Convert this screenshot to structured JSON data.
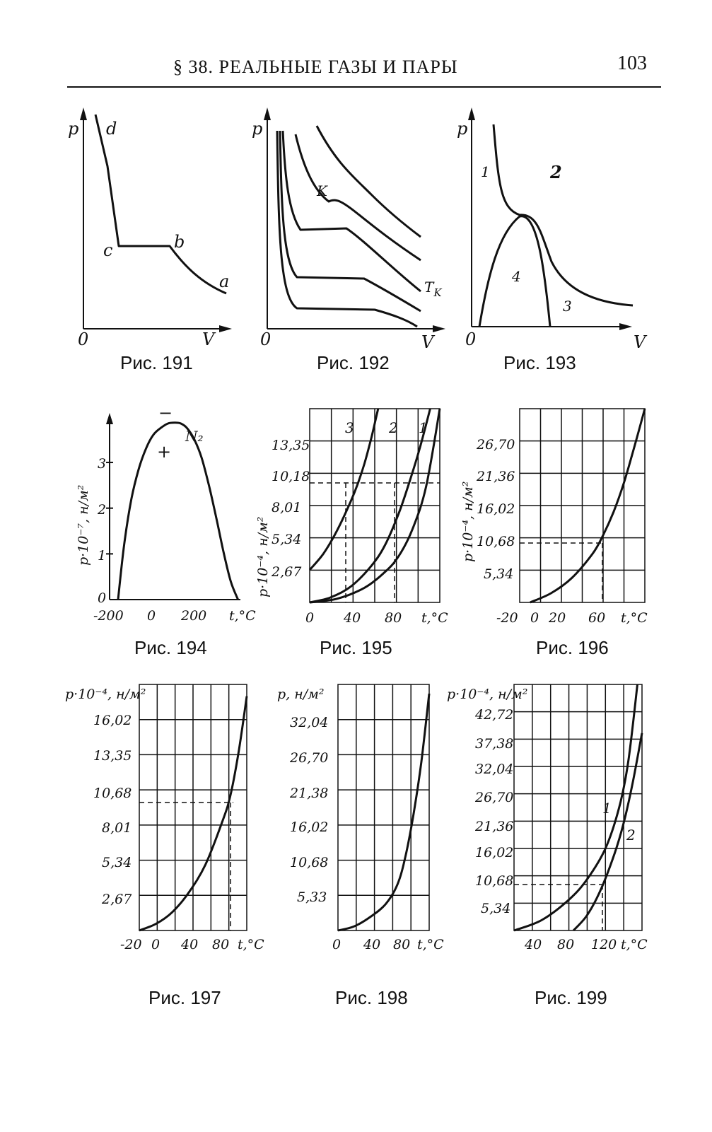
{
  "header": {
    "title": "§ 38. РЕАЛЬНЫЕ ГАЗЫ И ПАРЫ",
    "page_number": "103"
  },
  "figures": {
    "f191": {
      "caption": "Рис. 191",
      "ylabel": "p",
      "xlabel": "V",
      "origin": "0",
      "point_labels": {
        "a": "a",
        "b": "b",
        "c": "c",
        "d": "d"
      }
    },
    "f192": {
      "caption": "Рис. 192",
      "ylabel": "p",
      "xlabel": "V",
      "origin": "0",
      "point_K": "K",
      "label_Tk": "T",
      "label_Tk_sub": "K"
    },
    "f193": {
      "caption": "Рис. 193",
      "ylabel": "p",
      "xlabel": "V",
      "origin": "0",
      "region_labels": {
        "r1": "1",
        "r2": "2",
        "r3": "3",
        "r4": "4"
      }
    },
    "f194": {
      "caption": "Рис. 194",
      "ylabel": "p·10⁻⁷, н/м²",
      "xlabel": "t,°C",
      "series_label": "N₂",
      "minus_sign": "−",
      "plus_sign": "+"
    },
    "f195": {
      "caption": "Рис. 195",
      "ylabel": "p·10⁻⁴, н/м²",
      "xlabel": "t,°C",
      "curve_labels": [
        "3",
        "2",
        "1"
      ]
    },
    "f196": {
      "caption": "Рис. 196",
      "ylabel": "p·10⁻⁴, н/м²",
      "xlabel": "t,°C"
    },
    "f197": {
      "caption": "Рис. 197",
      "ylabel": "p·10⁻⁴, н/м²",
      "xlabel": "t,°C"
    },
    "f198": {
      "caption": "Рис. 198",
      "ylabel": "p, н/м²",
      "xlabel": "t,°C"
    },
    "f199": {
      "caption": "Рис. 199",
      "ylabel": "p·10⁻⁴, н/м²",
      "xlabel": "t,°C",
      "curve_labels": [
        "1",
        "2"
      ]
    }
  },
  "chart_data": [
    {
      "id": "f194",
      "type": "line",
      "xlabel": "t,°C",
      "ylabel": "p·10⁻⁷, н/м²",
      "xticks": [
        "-200",
        "0",
        "200"
      ],
      "yticks": [
        "0",
        "1",
        "2",
        "3"
      ],
      "xlim": [
        -240,
        300
      ],
      "ylim": [
        0,
        4.3
      ],
      "series": [
        {
          "name": "N₂",
          "x": [
            -205,
            -180,
            -150,
            -120,
            -90,
            -60,
            -30,
            0,
            30,
            55,
            80,
            110,
            140,
            170,
            200,
            230,
            260,
            290
          ],
          "y": [
            0,
            1.2,
            2.2,
            2.85,
            3.3,
            3.6,
            3.75,
            3.85,
            3.87,
            3.85,
            3.75,
            3.5,
            3.1,
            2.5,
            1.8,
            1.05,
            0.4,
            0
          ]
        }
      ]
    },
    {
      "id": "f195",
      "type": "line",
      "xlabel": "t,°C",
      "ylabel": "p·10⁻⁴, н/м²",
      "xticks": [
        "0",
        "40",
        "80"
      ],
      "yticks": [
        "2,67",
        "5,34",
        "8,01",
        "10,18",
        "13,35"
      ],
      "xlim": [
        0,
        95
      ],
      "ylim": [
        0,
        15.9
      ],
      "series": [
        {
          "name": "1",
          "x": [
            0,
            20,
            40,
            55,
            65,
            75,
            85,
            95
          ],
          "y": [
            0,
            0.3,
            1.2,
            2.5,
            3.8,
            6.0,
            9.5,
            15.9
          ]
        },
        {
          "name": "2",
          "x": [
            0,
            15,
            30,
            45,
            55,
            65,
            72,
            80,
            88
          ],
          "y": [
            0,
            0.4,
            1.3,
            3.0,
            4.7,
            7.3,
            9.6,
            12.5,
            15.9
          ]
        },
        {
          "name": "3",
          "x": [
            0,
            10,
            20,
            30,
            35,
            40,
            45,
            50
          ],
          "y": [
            2.67,
            4.0,
            5.9,
            8.3,
            9.7,
            11.4,
            13.5,
            15.9
          ]
        }
      ]
    },
    {
      "id": "f196",
      "type": "line",
      "xlabel": "t,°C",
      "ylabel": "p·10⁻⁴, н/м²",
      "xticks": [
        "-20",
        "0",
        "20",
        "60"
      ],
      "yticks": [
        "5,34",
        "10,68",
        "16,02",
        "21,36",
        "26,70"
      ],
      "xlim": [
        -20,
        100
      ],
      "ylim": [
        0,
        31.7
      ],
      "series": [
        {
          "name": "",
          "x": [
            -10,
            10,
            30,
            50,
            60,
            70,
            80,
            90,
            100
          ],
          "y": [
            0,
            1.5,
            4.0,
            8.0,
            11.0,
            14.8,
            19.6,
            25.5,
            31.7
          ]
        }
      ]
    },
    {
      "id": "f197",
      "type": "line",
      "xlabel": "t,°C",
      "ylabel": "p·10⁻⁴, н/м²",
      "xticks": [
        "-20",
        "0",
        "40",
        "80"
      ],
      "yticks": [
        "2,67",
        "5,34",
        "8,01",
        "10,68",
        "13,35",
        "16,02"
      ],
      "xlim": [
        -20,
        110
      ],
      "ylim": [
        0,
        18.7
      ],
      "series": [
        {
          "name": "",
          "x": [
            -20,
            0,
            20,
            40,
            60,
            80,
            90,
            100,
            110
          ],
          "y": [
            0,
            0.5,
            1.4,
            2.9,
            5.0,
            8.2,
            10.2,
            13.5,
            17.8
          ]
        }
      ]
    },
    {
      "id": "f198",
      "type": "line",
      "xlabel": "t,°C",
      "ylabel": "p, н/м²",
      "xticks": [
        "0",
        "40",
        "80"
      ],
      "yticks": [
        "5,33",
        "10,68",
        "16,02",
        "21,38",
        "26,70",
        "32,04"
      ],
      "xlim": [
        0,
        115
      ],
      "ylim": [
        0,
        37.4
      ],
      "series": [
        {
          "name": "",
          "x": [
            0,
            20,
            40,
            60,
            75,
            85,
            95,
            105,
            115
          ],
          "y": [
            0,
            0.6,
            2.0,
            4.0,
            7.0,
            11.2,
            17.5,
            25.5,
            36.0
          ]
        }
      ]
    },
    {
      "id": "f199",
      "type": "line",
      "xlabel": "t,°C",
      "ylabel": "p·10⁻⁴, н/м²",
      "xticks": [
        "40",
        "80",
        "120"
      ],
      "yticks": [
        "5,34",
        "10,68",
        "16,02",
        "21,36",
        "26,70",
        "32,04",
        "37,38",
        "42,72"
      ],
      "xlim": [
        20,
        160
      ],
      "ylim": [
        0,
        48
      ],
      "series": [
        {
          "name": "1",
          "x": [
            20,
            50,
            80,
            100,
            120,
            135,
            145,
            155
          ],
          "y": [
            0,
            2.0,
            6.0,
            10.0,
            16.0,
            24.0,
            33.0,
            48.0
          ]
        },
        {
          "name": "2",
          "x": [
            85,
            100,
            115,
            130,
            140,
            150,
            160
          ],
          "y": [
            0,
            3.0,
            8.0,
            15.0,
            21.0,
            29.0,
            38.5
          ]
        }
      ]
    }
  ]
}
